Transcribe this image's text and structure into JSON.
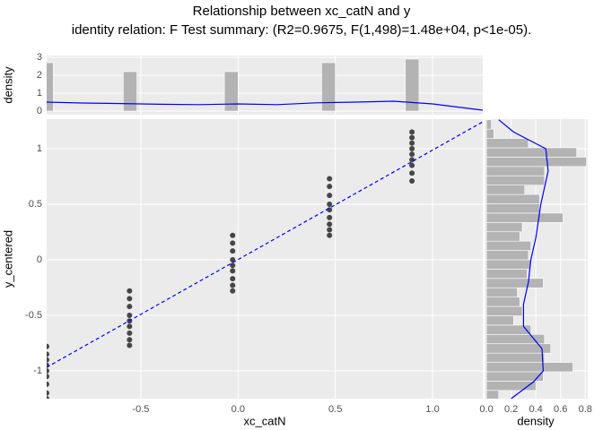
{
  "chart_data": [
    {
      "type": "scatter",
      "title": "Relationship between xc_catN and y",
      "subtitle": "identity relation: F Test summary: (R2=0.9675, F(1,498)=1.48e+04, p<1e-05).",
      "xlabel": "xc_catN",
      "ylabel": "y_centered",
      "xlim": [
        -0.984,
        1.258
      ],
      "ylim": [
        -1.25,
        1.266
      ],
      "xticks": [
        -0.5,
        {
          "value": 0,
          "label": "0.0"
        },
        0.5,
        {
          "value": 1,
          "label": "1.0"
        }
      ],
      "yticks": [
        -1,
        -0.5,
        0,
        0.5,
        1
      ],
      "grid": true,
      "color": "#000000",
      "x": [
        -0.984,
        -0.984,
        -0.984,
        -0.984,
        -0.984,
        -0.984,
        -0.984,
        -0.984,
        -0.984,
        -0.558,
        -0.558,
        -0.558,
        -0.558,
        -0.558,
        -0.558,
        -0.558,
        -0.558,
        -0.558,
        -0.028,
        -0.028,
        -0.028,
        -0.028,
        -0.028,
        -0.028,
        -0.028,
        -0.028,
        -0.028,
        0.47,
        0.47,
        0.47,
        0.47,
        0.47,
        0.47,
        0.47,
        0.47,
        0.47,
        0.894,
        0.894,
        0.894,
        0.894,
        0.894,
        0.894,
        0.894,
        0.894,
        0.894
      ],
      "values": [
        -0.78,
        -0.85,
        -0.9,
        -0.95,
        -1.0,
        -1.05,
        -1.12,
        -1.2,
        -1.25,
        -0.28,
        -0.35,
        -0.42,
        -0.5,
        -0.55,
        -0.6,
        -0.66,
        -0.72,
        -0.77,
        0.22,
        0.15,
        0.08,
        0.0,
        -0.05,
        -0.1,
        -0.17,
        -0.23,
        -0.28,
        0.73,
        0.66,
        0.58,
        0.5,
        0.45,
        0.38,
        0.32,
        0.27,
        0.22,
        1.15,
        1.1,
        1.05,
        1.0,
        0.95,
        0.9,
        0.85,
        0.78,
        0.71
      ],
      "fit_line": {
        "x": [
          -0.984,
          1.258
        ],
        "values": [
          -0.968,
          1.242
        ],
        "color": "#0000ff",
        "style": "dashed"
      }
    },
    {
      "type": "histogram",
      "orientation": "vertical",
      "ylabel": "density",
      "ylim": [
        -0.2,
        3.1
      ],
      "yticks": [
        0,
        1,
        2,
        3
      ],
      "color": "#b3b3b3",
      "bins": [
        -1.02,
        -0.95,
        -0.59,
        -0.52,
        -0.07,
        0.0,
        0.43,
        0.5,
        0.86,
        0.93
      ],
      "counts": [
        2.7,
        0,
        2.2,
        0,
        2.2,
        0,
        2.7,
        0,
        2.9
      ],
      "density_line": {
        "x": [
          -0.984,
          -0.8,
          -0.6,
          -0.4,
          -0.2,
          0,
          0.2,
          0.4,
          0.6,
          0.8,
          1.0,
          1.258
        ],
        "values": [
          0.5,
          0.45,
          0.42,
          0.38,
          0.36,
          0.4,
          0.36,
          0.46,
          0.5,
          0.55,
          0.4,
          0.05
        ],
        "color": "#0000ff"
      }
    },
    {
      "type": "histogram",
      "orientation": "horizontal",
      "xlabel": "density",
      "xlim": [
        -0.015,
        0.82
      ],
      "xticks": [
        {
          "value": 0,
          "label": "0.0"
        },
        0.2,
        0.4,
        0.6,
        0.8
      ],
      "color": "#b3b3b3",
      "bins": [
        -1.26,
        -1.176,
        -1.092,
        -1.008,
        -0.924,
        -0.84,
        -0.756,
        -0.672,
        -0.588,
        -0.504,
        -0.42,
        -0.336,
        -0.252,
        -0.168,
        -0.084,
        0,
        0.084,
        0.168,
        0.252,
        0.336,
        0.42,
        0.504,
        0.588,
        0.672,
        0.756,
        0.84,
        0.924,
        1.008,
        1.092,
        1.176,
        1.26
      ],
      "counts": [
        0.1,
        0.4,
        0.46,
        0.7,
        0.47,
        0.52,
        0.47,
        0.36,
        0.22,
        0.29,
        0.27,
        0.25,
        0.46,
        0.33,
        0.36,
        0.34,
        0.36,
        0.27,
        0.29,
        0.62,
        0.43,
        0.43,
        0.31,
        0.47,
        0.47,
        0.81,
        0.73,
        0.34,
        0.06,
        0.04
      ],
      "density_line": {
        "y": [
          -1.25,
          -1.1,
          -1.0,
          -0.8,
          -0.6,
          -0.4,
          -0.2,
          0,
          0.2,
          0.5,
          0.8,
          1.0,
          1.15,
          1.26
        ],
        "values": [
          0.2,
          0.38,
          0.46,
          0.45,
          0.3,
          0.3,
          0.34,
          0.36,
          0.4,
          0.44,
          0.5,
          0.48,
          0.22,
          0.1
        ],
        "color": "#0000ff"
      }
    }
  ]
}
